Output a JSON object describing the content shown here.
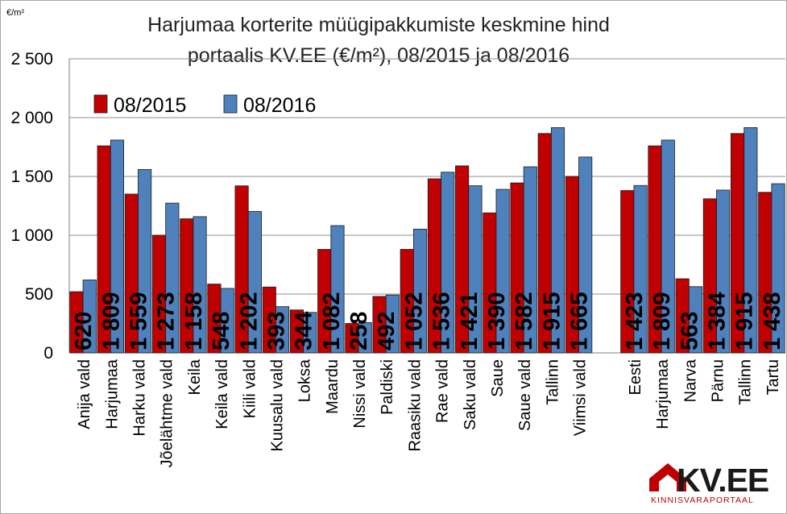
{
  "chart_data": {
    "type": "bar",
    "title_line1": "Harjumaa korterite müügipakkumiste keskmine hind",
    "title_line2": "portaalis KV.EE (€/m²), 08/2015 ja 08/2016",
    "unit_label": "€/m²",
    "ylim": [
      0,
      2500
    ],
    "yticks": [
      0,
      500,
      1000,
      1500,
      2000,
      2500
    ],
    "ytick_labels": [
      "0",
      "500",
      "1 000",
      "1 500",
      "2 000",
      "2 500"
    ],
    "grid": true,
    "legend_position": "top-left",
    "categories": [
      "Anija vald",
      "Harjumaa",
      "Harku vald",
      "Jõelähtme vald",
      "Keila",
      "Keila vald",
      "Kiili vald",
      "Kuusalu vald",
      "Loksa",
      "Maardu",
      "Nissi vald",
      "Paldiski",
      "Raasiku vald",
      "Rae vald",
      "Saku vald",
      "Saue",
      "Saue vald",
      "Tallinn",
      "Viimsi vald",
      "",
      "Eesti",
      "Harjumaa",
      "Narva",
      "Pärnu",
      "Tallinn",
      "Tartu"
    ],
    "series": [
      {
        "name": "08/2015",
        "color": "#c00000",
        "values": [
          520,
          1760,
          1350,
          1000,
          1140,
          585,
          1420,
          560,
          365,
          880,
          250,
          480,
          880,
          1480,
          1590,
          1190,
          1445,
          1865,
          1500,
          null,
          1380,
          1760,
          630,
          1310,
          1865,
          1365
        ]
      },
      {
        "name": "08/2016",
        "color": "#4f81bd",
        "values": [
          620,
          1809,
          1559,
          1273,
          1158,
          548,
          1202,
          393,
          344,
          1082,
          258,
          492,
          1052,
          1536,
          1421,
          1390,
          1582,
          1915,
          1665,
          null,
          1423,
          1809,
          563,
          1384,
          1915,
          1438
        ],
        "labels": [
          "620",
          "1 809",
          "1 559",
          "1 273",
          "1 158",
          "548",
          "1 202",
          "393",
          "344",
          "1 082",
          "258",
          "492",
          "1 052",
          "1 536",
          "1 421",
          "1 390",
          "1 582",
          "1 915",
          "1 665",
          "",
          "1 423",
          "1 809",
          "563",
          "1 384",
          "1 915",
          "1 438"
        ]
      }
    ]
  },
  "logo": {
    "text": "KV.EE",
    "subtitle": "KINNISVARAPORTAAL",
    "color": "#c00000"
  }
}
